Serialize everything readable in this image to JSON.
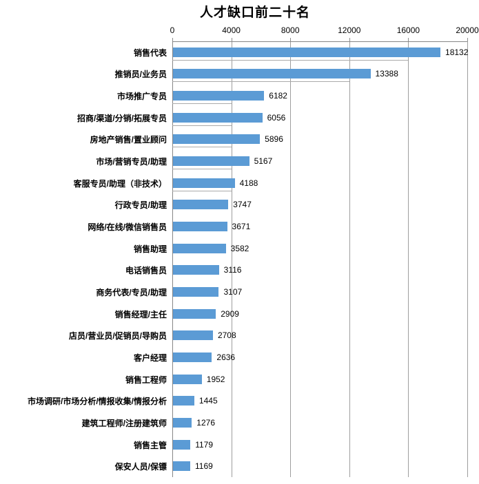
{
  "title": "人才缺口前二十名",
  "chart_data": {
    "type": "bar",
    "orientation": "horizontal",
    "title": "人才缺口前二十名",
    "categories": [
      "销售代表",
      "推销员/业务员",
      "市场推广专员",
      "招商/渠道/分销/拓展专员",
      "房地产销售/置业顾问",
      "市场/营销专员/助理",
      "客服专员/助理（非技术）",
      "行政专员/助理",
      "网络/在线/微信销售员",
      "销售助理",
      "电话销售员",
      "商务代表/专员/助理",
      "销售经理/主任",
      "店员/营业员/促销员/导购员",
      "客户经理",
      "销售工程师",
      "市场调研/市场分析/情报收集/情报分析",
      "建筑工程师/注册建筑师",
      "销售主管",
      "保安人员/保镖"
    ],
    "values": [
      18132,
      13388,
      6182,
      6056,
      5896,
      5167,
      4188,
      3747,
      3671,
      3582,
      3116,
      3107,
      2909,
      2708,
      2636,
      1952,
      1445,
      1276,
      1179,
      1169
    ],
    "xlim": [
      0,
      20000
    ],
    "x_ticks": [
      0,
      4000,
      8000,
      12000,
      16000,
      20000
    ],
    "x_tick_labels": [
      "0",
      "4000",
      "8000",
      "12000",
      "16000",
      "20000"
    ],
    "axis_position": "top",
    "grid": "vertical-major",
    "legend": "none",
    "bar_color": "#5B9BD5",
    "gridline_color": "#9d9d9d",
    "value_labels_shown": true
  }
}
